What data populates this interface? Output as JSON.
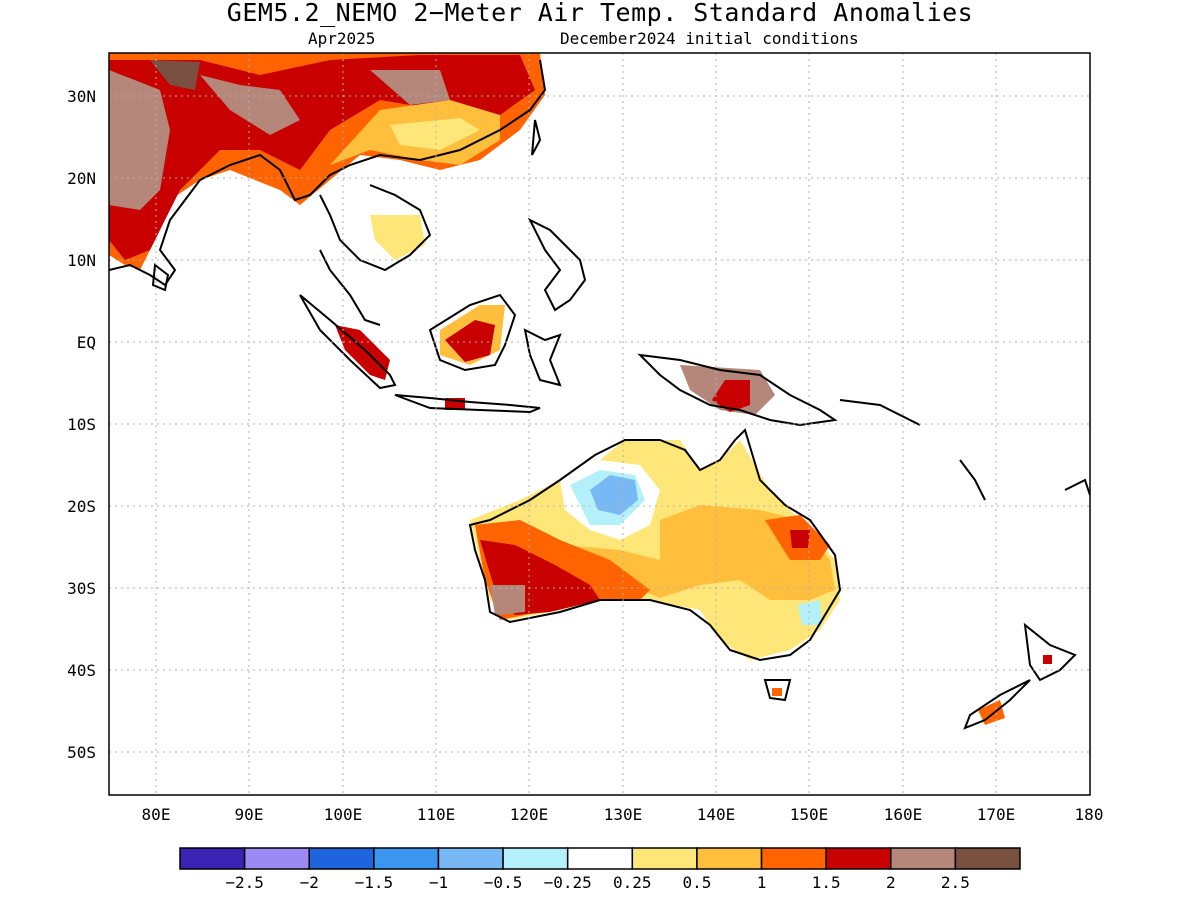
{
  "title": "GEM5.2_NEMO 2−Meter Air Temp. Standard Anomalies",
  "subtitle_left": "Apr2025",
  "subtitle_right": "December2024 initial conditions",
  "lat_labels": [
    "30N",
    "20N",
    "10N",
    "EQ",
    "10S",
    "20S",
    "30S",
    "40S",
    "50S"
  ],
  "lon_labels": [
    "80E",
    "90E",
    "100E",
    "110E",
    "120E",
    "130E",
    "140E",
    "150E",
    "160E",
    "170E",
    "180"
  ],
  "colorbar": {
    "colors": [
      "#3a22b4",
      "#9b8af4",
      "#1e64dc",
      "#3c96f0",
      "#78b8f4",
      "#b4f0fa",
      "#ffffff",
      "#ffe678",
      "#ffbe3c",
      "#ff6400",
      "#c80000",
      "#b4877a",
      "#7a5040"
    ],
    "labels": [
      "−2.5",
      "−2",
      "−1.5",
      "−1",
      "−0.5",
      "−0.25",
      "0.25",
      "0.5",
      "1",
      "1.5",
      "2",
      "2.5"
    ]
  }
}
